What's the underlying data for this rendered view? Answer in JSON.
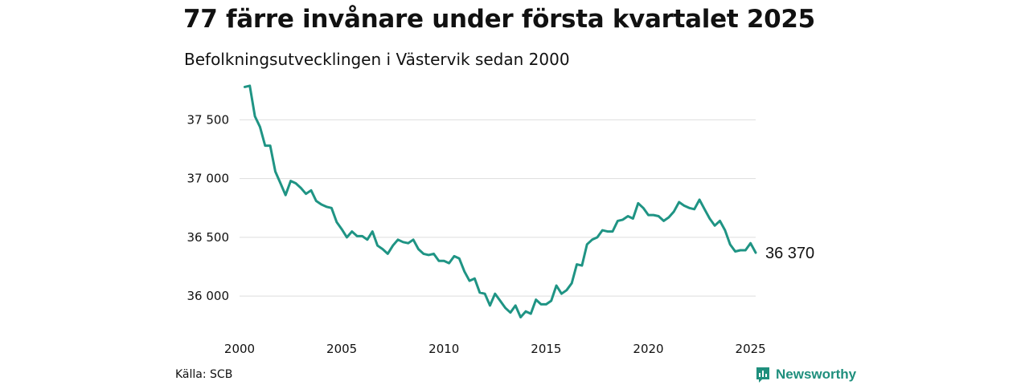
{
  "title": "77 färre invånare under första kvartalet 2025",
  "subtitle": "Befolkningsutvecklingen i Västervik sedan 2000",
  "source": "Källa: SCB",
  "brand": {
    "name": "Newsworthy",
    "icon": "newsworthy-logo-icon",
    "color": "#1f8f7d"
  },
  "chart_data": {
    "type": "line",
    "title": "77 färre invånare under första kvartalet 2025",
    "subtitle": "Befolkningsutvecklingen i Västervik sedan 2000",
    "xlabel": "",
    "ylabel": "",
    "x_ticks": [
      2000,
      2005,
      2010,
      2015,
      2020,
      2025
    ],
    "y_ticks": [
      36000,
      36500,
      37000,
      37500
    ],
    "y_tick_labels": [
      "36 000",
      "36 500",
      "37 000",
      "37 500"
    ],
    "ylim": [
      35810,
      37810
    ],
    "xlim": [
      2000,
      2025.25
    ],
    "grid": "horizontal",
    "line_color": "#1f9484",
    "end_label": "36 370",
    "series": [
      {
        "x": [
          2000.25,
          2000.5,
          2000.75,
          2001.0,
          2001.25,
          2001.5,
          2001.75,
          2002.0,
          2002.25,
          2002.5,
          2002.75,
          2003.0,
          2003.25,
          2003.5,
          2003.75,
          2004.0,
          2004.25,
          2004.5,
          2004.75,
          2005.0,
          2005.25,
          2005.5,
          2005.75,
          2006.0,
          2006.25,
          2006.5,
          2006.75,
          2007.0,
          2007.25,
          2007.5,
          2007.75,
          2008.0,
          2008.25,
          2008.5,
          2008.75,
          2009.0,
          2009.25,
          2009.5,
          2009.75,
          2010.0,
          2010.25,
          2010.5,
          2010.75,
          2011.0,
          2011.25,
          2011.5,
          2011.75,
          2012.0,
          2012.25,
          2012.5,
          2012.75,
          2013.0,
          2013.25,
          2013.5,
          2013.75,
          2014.0,
          2014.25,
          2014.5,
          2014.75,
          2015.0,
          2015.25,
          2015.5,
          2015.75,
          2016.0,
          2016.25,
          2016.5,
          2016.75,
          2017.0,
          2017.25,
          2017.5,
          2017.75,
          2018.0,
          2018.25,
          2018.5,
          2018.75,
          2019.0,
          2019.25,
          2019.5,
          2019.75,
          2020.0,
          2020.25,
          2020.5,
          2020.75,
          2021.0,
          2021.25,
          2021.5,
          2021.75,
          2022.0,
          2022.25,
          2022.5,
          2022.75,
          2023.0,
          2023.25,
          2023.5,
          2023.75,
          2024.0,
          2024.25,
          2024.5,
          2024.75,
          2025.0,
          2025.25
        ],
        "values": [
          37780,
          37790,
          37530,
          37440,
          37280,
          37280,
          37060,
          36960,
          36860,
          36980,
          36960,
          36920,
          36870,
          36900,
          36810,
          36780,
          36760,
          36750,
          36630,
          36570,
          36500,
          36550,
          36510,
          36510,
          36480,
          36550,
          36430,
          36400,
          36360,
          36430,
          36480,
          36460,
          36450,
          36480,
          36400,
          36360,
          36350,
          36360,
          36300,
          36300,
          36280,
          36340,
          36320,
          36210,
          36130,
          36150,
          36030,
          36020,
          35920,
          36020,
          35960,
          35900,
          35860,
          35920,
          35820,
          35870,
          35850,
          35970,
          35930,
          35930,
          35960,
          36090,
          36020,
          36050,
          36110,
          36270,
          36260,
          36440,
          36480,
          36500,
          36560,
          36550,
          36550,
          36640,
          36650,
          36680,
          36660,
          36790,
          36750,
          36690,
          36690,
          36680,
          36640,
          36670,
          36720,
          36800,
          36770,
          36750,
          36740,
          36820,
          36740,
          36660,
          36600,
          36640,
          36560,
          36440,
          36380,
          36390,
          36390,
          36450,
          36370
        ]
      }
    ]
  }
}
